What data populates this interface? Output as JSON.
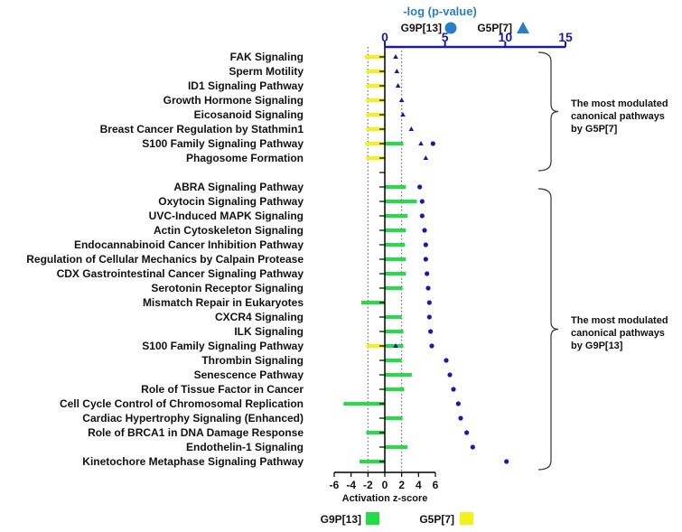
{
  "chart_data": {
    "type": "bar",
    "orientation": "horizontal",
    "categories": [
      "FAK Signaling",
      "Sperm Motility",
      "ID1 Signaling Pathway",
      "Growth Hormone Signaling",
      "Eicosanoid Signaling",
      "Breast Cancer Regulation by Stathmin1",
      "S100 Family Signaling Pathway",
      "Phagosome Formation",
      "",
      "ABRA Signaling Pathway",
      "Oxytocin Signaling Pathway",
      "UVC-Induced MAPK Signaling",
      "Actin Cytoskeleton Signaling",
      "Endocannabinoid Cancer Inhibition Pathway",
      "Regulation of Cellular Mechanics by Calpain Protease",
      "CDX Gastrointestinal Cancer Signaling Pathway",
      "Serotonin Receptor Signaling",
      "Mismatch Repair in Eukaryotes",
      "CXCR4 Signaling",
      "ILK Signaling",
      "S100 Family Signaling Pathway",
      "Thrombin Signaling",
      "Senescence Pathway",
      "Role of Tissue Factor in Cancer",
      "Cell Cycle Control of Chromosomal Replication",
      "Cardiac Hypertrophy Signaling (Enhanced)",
      "Role of BRCA1 in DNA Damage Response",
      "Endothelin-1 Signaling",
      "Kinetochore Metaphase Signaling Pathway"
    ],
    "zscore_axis": {
      "label": "Activation z-score",
      "range": [
        -6,
        6
      ],
      "ticks": [
        "-6",
        "-4",
        "-2",
        "0",
        "2",
        "4",
        "6"
      ],
      "reference_lines": [
        -2,
        2
      ]
    },
    "pvalue_axis": {
      "label": "-log (p-value)",
      "range": [
        0,
        15
      ],
      "ticks": [
        "0",
        "5",
        "10",
        "15"
      ]
    },
    "series": [
      {
        "name": "G9P[13]",
        "kind": "bar",
        "color": "#22dd44",
        "values": [
          null,
          null,
          null,
          null,
          null,
          null,
          2.2,
          null,
          null,
          2.5,
          3.8,
          2.7,
          2.5,
          2.4,
          2.5,
          2.5,
          2.1,
          -2.8,
          2.0,
          2.2,
          2.2,
          2.0,
          3.2,
          2.3,
          -4.9,
          2.1,
          -2.2,
          2.7,
          -3.0
        ]
      },
      {
        "name": "G5P[7]",
        "kind": "bar",
        "color": "#f2f21a",
        "values": [
          -2.4,
          -2.2,
          -2.2,
          -2.2,
          -2.2,
          -2.2,
          -2.3,
          -2.2,
          null,
          null,
          null,
          null,
          null,
          null,
          null,
          null,
          null,
          null,
          null,
          null,
          -2.2,
          null,
          null,
          null,
          null,
          null,
          null,
          null,
          null
        ]
      },
      {
        "name": "G9P[13]",
        "kind": "scatter",
        "marker": "circle",
        "color": "#1a1aa8",
        "values": [
          null,
          null,
          null,
          null,
          null,
          null,
          4.0,
          null,
          null,
          2.9,
          3.1,
          3.1,
          3.3,
          3.4,
          3.4,
          3.5,
          3.6,
          3.7,
          3.7,
          3.8,
          3.9,
          5.1,
          5.4,
          5.7,
          6.1,
          6.3,
          6.8,
          7.3,
          10.1
        ]
      },
      {
        "name": "G5P[7]",
        "kind": "scatter",
        "marker": "triangle",
        "color": "#1a1aa8",
        "values": [
          0.9,
          1.0,
          1.1,
          1.4,
          1.5,
          2.2,
          3.0,
          3.4,
          null,
          null,
          null,
          null,
          null,
          null,
          null,
          null,
          null,
          null,
          null,
          null,
          0.9,
          null,
          null,
          null,
          null,
          null,
          null,
          null,
          null
        ]
      }
    ],
    "annotations": [
      {
        "lines": [
          "The most modulated",
          "canonical pathways",
          "  by G5P[7]"
        ],
        "group": "top"
      },
      {
        "lines": [
          "The most modulated",
          "canonical pathways",
          "  by G9P[13]"
        ],
        "group": "bottom"
      }
    ],
    "legend": {
      "placement": "bottom",
      "entries": [
        {
          "label": "G9P[13]",
          "color": "#22dd44"
        },
        {
          "label": "G5P[7]",
          "color": "#f2f21a"
        }
      ]
    },
    "top_legend": {
      "entries": [
        {
          "label": "G9P[13]",
          "marker": "circle",
          "color": "#2a7ec8"
        },
        {
          "label": "G5P[7]",
          "marker": "triangle",
          "color": "#2a7ec8"
        }
      ]
    }
  }
}
